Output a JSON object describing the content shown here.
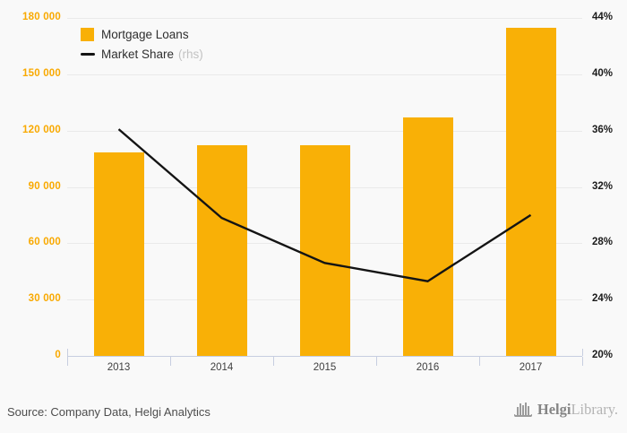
{
  "chart_data": {
    "type": "bar+line combo",
    "categories": [
      "2013",
      "2014",
      "2015",
      "2016",
      "2017"
    ],
    "series": [
      {
        "name": "Mortgage Loans",
        "type": "bar",
        "axis": "left",
        "color": "#F9B006",
        "values": [
          108500,
          112300,
          112300,
          127000,
          174600
        ]
      },
      {
        "name": "Market Share",
        "type": "line",
        "axis": "right",
        "color": "#141414",
        "values": [
          36.1,
          29.8,
          26.6,
          25.3,
          30.0
        ]
      }
    ],
    "left_axis": {
      "min": 0,
      "max": 180000,
      "step": 30000,
      "color": "#F9A900",
      "tick_labels": [
        "0",
        "30 000",
        "60 000",
        "90 000",
        "120 000",
        "150 000",
        "180 000"
      ]
    },
    "right_axis": {
      "min": 20,
      "max": 44,
      "step": 4,
      "color": "#1b1b1b",
      "tick_labels": [
        "20%",
        "24%",
        "28%",
        "32%",
        "36%",
        "40%",
        "44%"
      ]
    },
    "title": "",
    "grid": true,
    "legend_position": "top-left"
  },
  "legend": {
    "items": [
      {
        "label": "Mortgage Loans",
        "swatch": "square",
        "color": "#F9B006"
      },
      {
        "label": "Market Share",
        "note": "(rhs)",
        "swatch": "line",
        "color": "#141414"
      }
    ]
  },
  "footer": {
    "source": "Source: Company Data, Helgi Analytics",
    "logo": {
      "brand": "Helgi",
      "suffix": "Library."
    }
  }
}
